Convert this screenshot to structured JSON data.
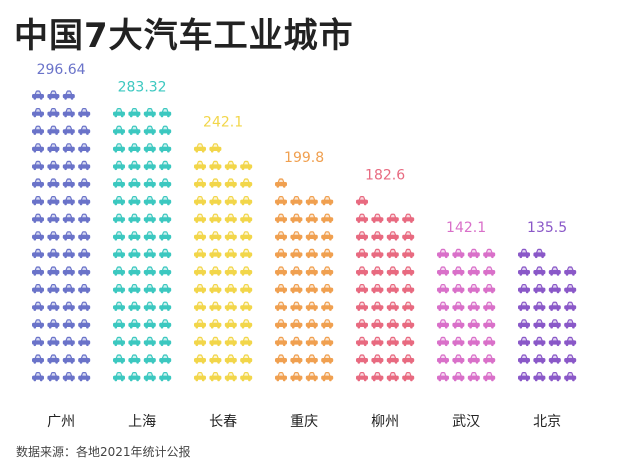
{
  "chart_data": {
    "type": "bar",
    "title": "中国7大汽车工业城市",
    "categories": [
      "广州",
      "上海",
      "长春",
      "重庆",
      "柳州",
      "武汉",
      "北京"
    ],
    "values": [
      296.64,
      283.32,
      242.1,
      199.8,
      182.6,
      142.1,
      135.5
    ],
    "value_labels": [
      "296.64",
      "283.32",
      "242.1",
      "199.8",
      "182.6",
      "142.1",
      "135.5"
    ],
    "colors": [
      "#6a73c9",
      "#3cc8c0",
      "#f2d64a",
      "#f0a050",
      "#e86a80",
      "#d970c9",
      "#8a58c8"
    ],
    "units_per_icon": 4.45,
    "icons_per_row": 4,
    "icon": "car-icon",
    "source": "数据来源：各地2021年统计公报"
  }
}
